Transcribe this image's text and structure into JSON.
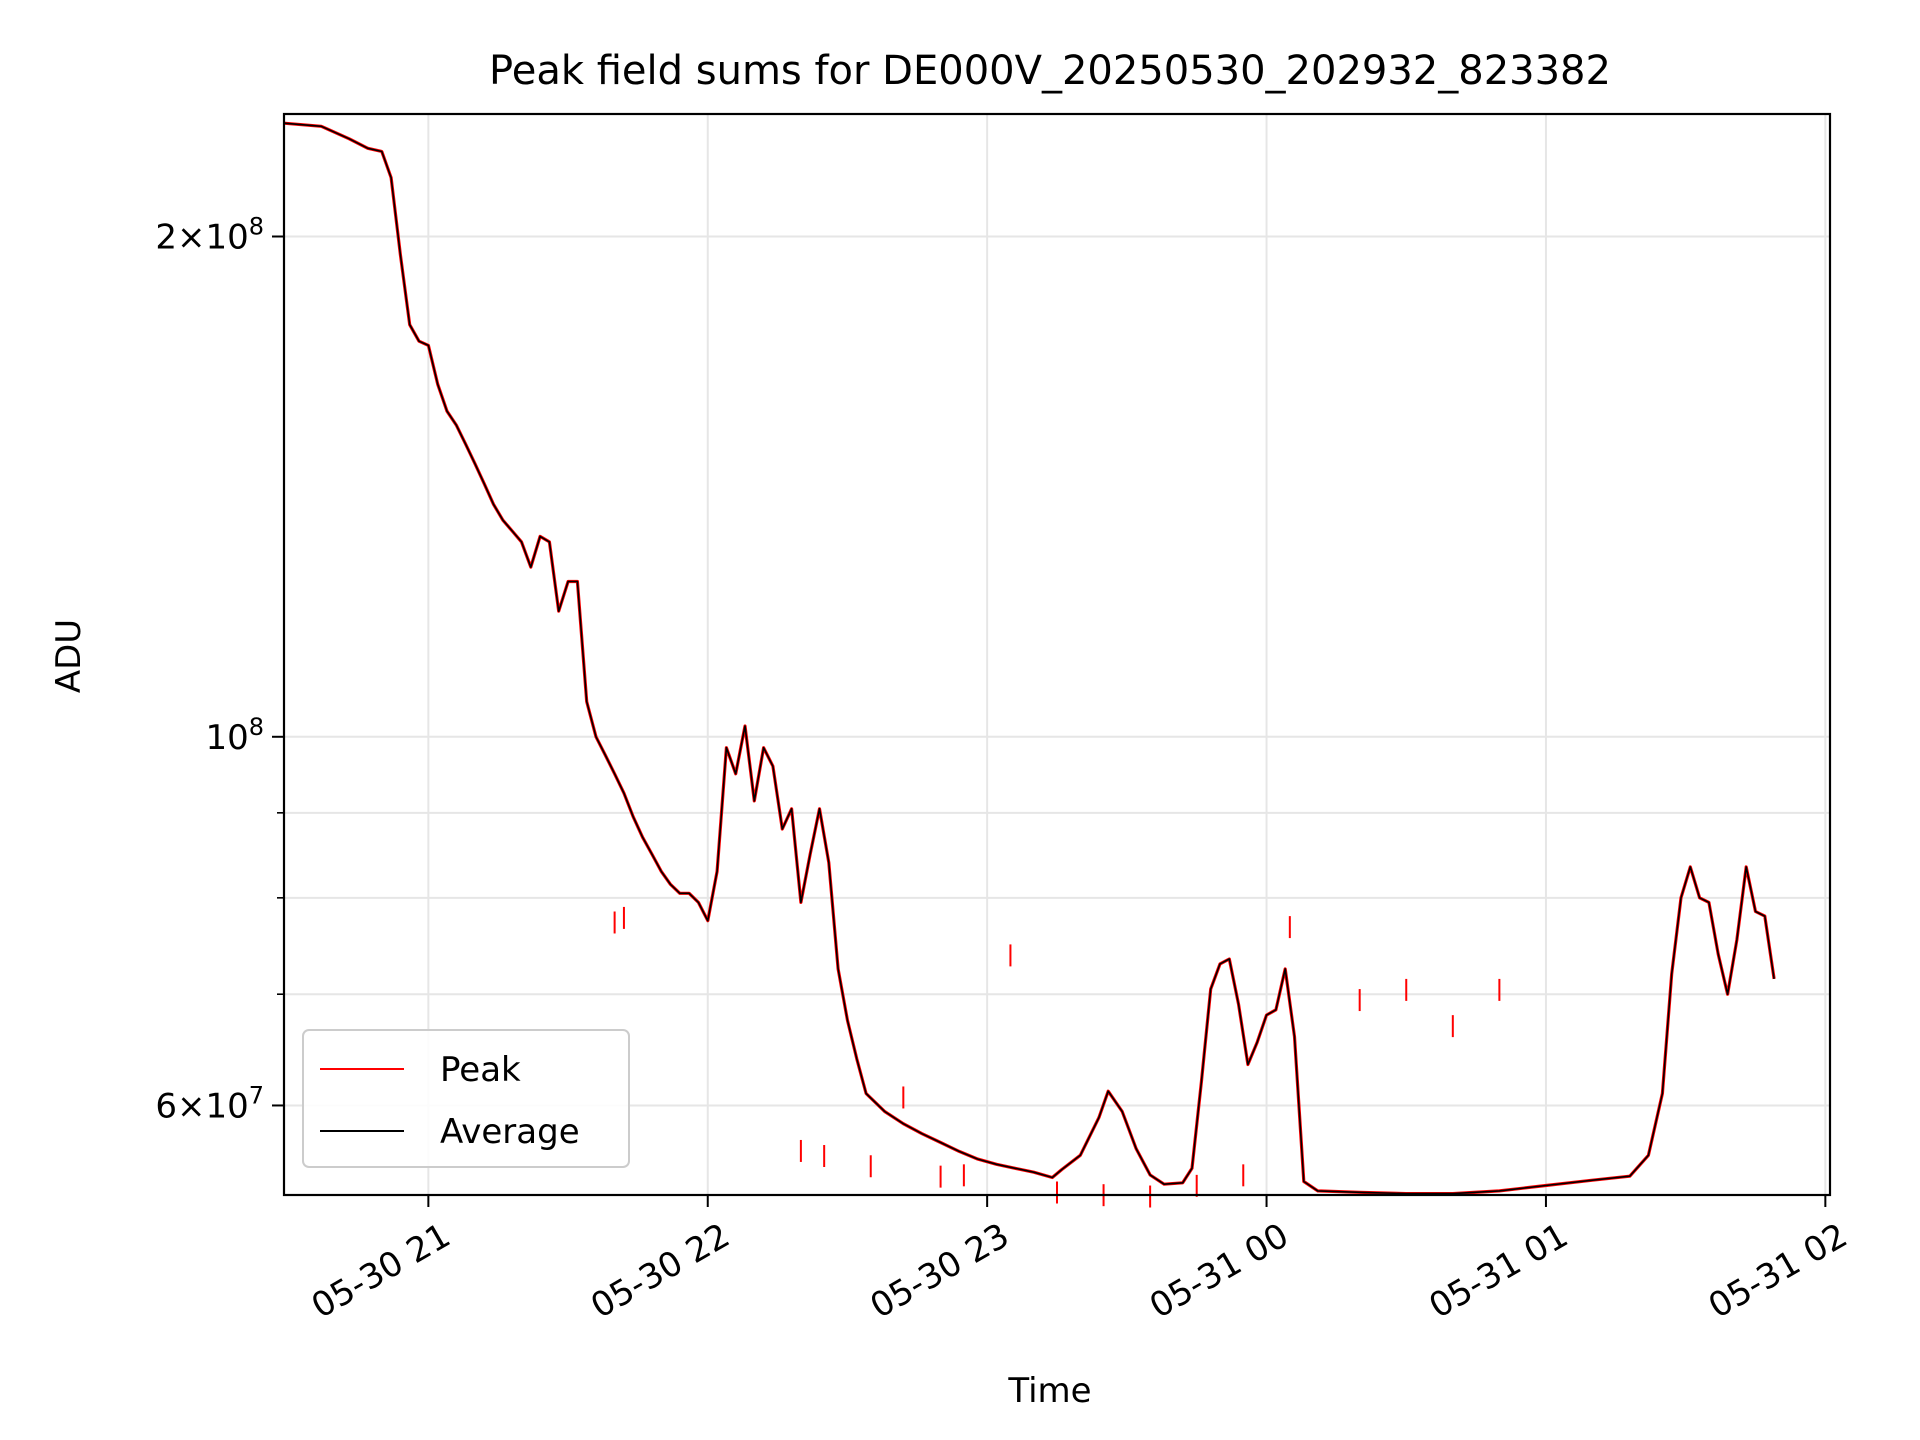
{
  "chart_data": {
    "type": "line",
    "title": "Peak field sums for DE000V_20250530_202932_823382",
    "xlabel": "Time",
    "ylabel": "ADU",
    "yscale": "log",
    "xlim": [
      "2025-05-30 20:29",
      "2025-05-31 02:01"
    ],
    "ylim": [
      53000000,
      237000000
    ],
    "grid": true,
    "legend": "lower-left",
    "x_ticks": [
      {
        "t": "2025-05-30 21:00",
        "label": "05-30 21"
      },
      {
        "t": "2025-05-30 22:00",
        "label": "05-30 22"
      },
      {
        "t": "2025-05-30 23:00",
        "label": "05-30 23"
      },
      {
        "t": "2025-05-31 00:00",
        "label": "05-31 00"
      },
      {
        "t": "2025-05-31 01:00",
        "label": "05-31 01"
      },
      {
        "t": "2025-05-31 02:00",
        "label": "05-31 02"
      }
    ],
    "y_ticks": [
      {
        "v": 60000000,
        "mant": "6",
        "exp": "7"
      },
      {
        "v": 100000000,
        "mant": "",
        "exp": "8"
      },
      {
        "v": 200000000,
        "mant": "2",
        "exp": "8"
      }
    ],
    "y_minor": [
      70000000,
      80000000,
      90000000
    ],
    "series": [
      {
        "name": "Peak",
        "color": "#ff0000",
        "points": [
          [
            "2025-05-30 21:40",
            78500000
          ],
          [
            "2025-05-30 21:42",
            79000000
          ],
          [
            "2025-05-30 22:20",
            57200000
          ],
          [
            "2025-05-30 22:25",
            56800000
          ],
          [
            "2025-05-30 22:35",
            56000000
          ],
          [
            "2025-05-30 22:42",
            61600000
          ],
          [
            "2025-05-30 22:50",
            55200000
          ],
          [
            "2025-05-30 22:55",
            55300000
          ],
          [
            "2025-05-30 23:05",
            75000000
          ],
          [
            "2025-05-30 23:15",
            54000000
          ],
          [
            "2025-05-30 23:25",
            53800000
          ],
          [
            "2025-05-30 23:35",
            53700000
          ],
          [
            "2025-05-30 23:45",
            54500000
          ],
          [
            "2025-05-30 23:55",
            55300000
          ],
          [
            "2025-05-31 00:05",
            78000000
          ],
          [
            "2025-05-31 00:20",
            70500000
          ],
          [
            "2025-05-31 00:30",
            71500000
          ],
          [
            "2025-05-31 00:40",
            68000000
          ],
          [
            "2025-05-31 00:50",
            71500000
          ]
        ]
      },
      {
        "name": "Average",
        "color": "#000000",
        "points": [
          [
            "2025-05-30 20:29",
            234000000
          ],
          [
            "2025-05-30 20:37",
            233000000
          ],
          [
            "2025-05-30 20:43",
            229000000
          ],
          [
            "2025-05-30 20:47",
            226000000
          ],
          [
            "2025-05-30 20:50",
            225000000
          ],
          [
            "2025-05-30 20:52",
            217000000
          ],
          [
            "2025-05-30 20:54",
            195000000
          ],
          [
            "2025-05-30 20:56",
            177000000
          ],
          [
            "2025-05-30 20:58",
            173000000
          ],
          [
            "2025-05-30 21:00",
            172000000
          ],
          [
            "2025-05-30 21:02",
            163000000
          ],
          [
            "2025-05-30 21:04",
            157000000
          ],
          [
            "2025-05-30 21:06",
            154000000
          ],
          [
            "2025-05-30 21:08",
            150000000
          ],
          [
            "2025-05-30 21:10",
            146000000
          ],
          [
            "2025-05-30 21:12",
            142000000
          ],
          [
            "2025-05-30 21:14",
            138000000
          ],
          [
            "2025-05-30 21:16",
            135000000
          ],
          [
            "2025-05-30 21:18",
            133000000
          ],
          [
            "2025-05-30 21:20",
            131000000
          ],
          [
            "2025-05-30 21:22",
            126500000
          ],
          [
            "2025-05-30 21:24",
            132000000
          ],
          [
            "2025-05-30 21:26",
            131000000
          ],
          [
            "2025-05-30 21:28",
            119000000
          ],
          [
            "2025-05-30 21:30",
            124000000
          ],
          [
            "2025-05-30 21:32",
            124000000
          ],
          [
            "2025-05-30 21:34",
            105000000
          ],
          [
            "2025-05-30 21:36",
            100000000
          ],
          [
            "2025-05-30 21:38",
            97500000
          ],
          [
            "2025-05-30 21:40",
            95000000
          ],
          [
            "2025-05-30 21:42",
            92500000
          ],
          [
            "2025-05-30 21:44",
            89500000
          ],
          [
            "2025-05-30 21:46",
            87000000
          ],
          [
            "2025-05-30 21:48",
            85000000
          ],
          [
            "2025-05-30 21:50",
            83000000
          ],
          [
            "2025-05-30 21:52",
            81500000
          ],
          [
            "2025-05-30 21:54",
            80500000
          ],
          [
            "2025-05-30 21:56",
            80500000
          ],
          [
            "2025-05-30 21:58",
            79500000
          ],
          [
            "2025-05-30 22:00",
            77500000
          ],
          [
            "2025-05-30 22:02",
            83000000
          ],
          [
            "2025-05-30 22:04",
            98500000
          ],
          [
            "2025-05-30 22:06",
            95000000
          ],
          [
            "2025-05-30 22:08",
            101500000
          ],
          [
            "2025-05-30 22:10",
            91500000
          ],
          [
            "2025-05-30 22:12",
            98500000
          ],
          [
            "2025-05-30 22:14",
            96000000
          ],
          [
            "2025-05-30 22:16",
            88000000
          ],
          [
            "2025-05-30 22:18",
            90500000
          ],
          [
            "2025-05-30 22:20",
            79500000
          ],
          [
            "2025-05-30 22:22",
            85000000
          ],
          [
            "2025-05-30 22:24",
            90500000
          ],
          [
            "2025-05-30 22:26",
            84000000
          ],
          [
            "2025-05-30 22:28",
            72500000
          ],
          [
            "2025-05-30 22:30",
            67500000
          ],
          [
            "2025-05-30 22:32",
            64000000
          ],
          [
            "2025-05-30 22:34",
            61000000
          ],
          [
            "2025-05-30 22:38",
            59500000
          ],
          [
            "2025-05-30 22:42",
            58500000
          ],
          [
            "2025-05-30 22:46",
            57700000
          ],
          [
            "2025-05-30 22:50",
            57000000
          ],
          [
            "2025-05-30 22:54",
            56300000
          ],
          [
            "2025-05-30 22:58",
            55700000
          ],
          [
            "2025-05-30 23:02",
            55300000
          ],
          [
            "2025-05-30 23:06",
            55000000
          ],
          [
            "2025-05-30 23:10",
            54700000
          ],
          [
            "2025-05-30 23:14",
            54300000
          ],
          [
            "2025-05-30 23:16",
            54900000
          ],
          [
            "2025-05-30 23:20",
            56000000
          ],
          [
            "2025-05-30 23:24",
            59000000
          ],
          [
            "2025-05-30 23:26",
            61200000
          ],
          [
            "2025-05-30 23:29",
            59500000
          ],
          [
            "2025-05-30 23:32",
            56500000
          ],
          [
            "2025-05-30 23:35",
            54500000
          ],
          [
            "2025-05-30 23:38",
            53800000
          ],
          [
            "2025-05-30 23:42",
            53900000
          ],
          [
            "2025-05-30 23:44",
            55000000
          ],
          [
            "2025-05-30 23:46",
            62000000
          ],
          [
            "2025-05-30 23:48",
            70500000
          ],
          [
            "2025-05-30 23:50",
            73000000
          ],
          [
            "2025-05-30 23:52",
            73500000
          ],
          [
            "2025-05-30 23:54",
            69000000
          ],
          [
            "2025-05-30 23:56",
            63500000
          ],
          [
            "2025-05-30 23:58",
            65500000
          ],
          [
            "2025-05-31 00:00",
            68000000
          ],
          [
            "2025-05-31 00:02",
            68500000
          ],
          [
            "2025-05-31 00:04",
            72500000
          ],
          [
            "2025-05-31 00:06",
            66000000
          ],
          [
            "2025-05-31 00:08",
            54000000
          ],
          [
            "2025-05-31 00:11",
            53300000
          ],
          [
            "2025-05-31 00:20",
            53200000
          ],
          [
            "2025-05-31 00:30",
            53100000
          ],
          [
            "2025-05-31 00:40",
            53100000
          ],
          [
            "2025-05-31 00:50",
            53300000
          ],
          [
            "2025-05-31 01:00",
            53700000
          ],
          [
            "2025-05-31 01:10",
            54100000
          ],
          [
            "2025-05-31 01:18",
            54400000
          ],
          [
            "2025-05-31 01:22",
            56000000
          ],
          [
            "2025-05-31 01:25",
            61000000
          ],
          [
            "2025-05-31 01:27",
            72000000
          ],
          [
            "2025-05-31 01:29",
            80000000
          ],
          [
            "2025-05-31 01:31",
            83500000
          ],
          [
            "2025-05-31 01:33",
            80000000
          ],
          [
            "2025-05-31 01:35",
            79500000
          ],
          [
            "2025-05-31 01:37",
            74000000
          ],
          [
            "2025-05-31 01:39",
            70000000
          ],
          [
            "2025-05-31 01:41",
            75500000
          ],
          [
            "2025-05-31 01:43",
            83500000
          ],
          [
            "2025-05-31 01:45",
            78500000
          ],
          [
            "2025-05-31 01:47",
            78000000
          ],
          [
            "2025-05-31 01:49",
            71500000
          ]
        ]
      }
    ]
  }
}
